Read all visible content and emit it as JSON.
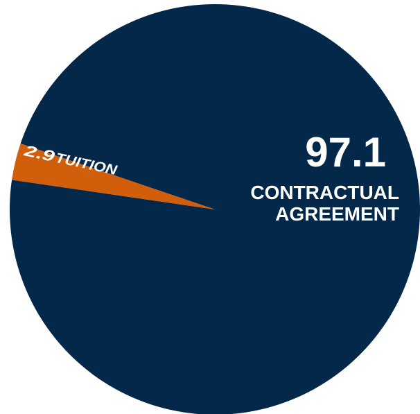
{
  "chart_data": {
    "type": "pie",
    "slices": [
      {
        "value": 97.1,
        "value_label": "97.1",
        "category_label": [
          "CONTRACTUAL",
          "AGREEMENT"
        ],
        "color": "#03284A"
      },
      {
        "value": 2.9,
        "value_label": "2.9",
        "category_label": [
          "TUITION"
        ],
        "color": "#D15E0A"
      }
    ]
  }
}
